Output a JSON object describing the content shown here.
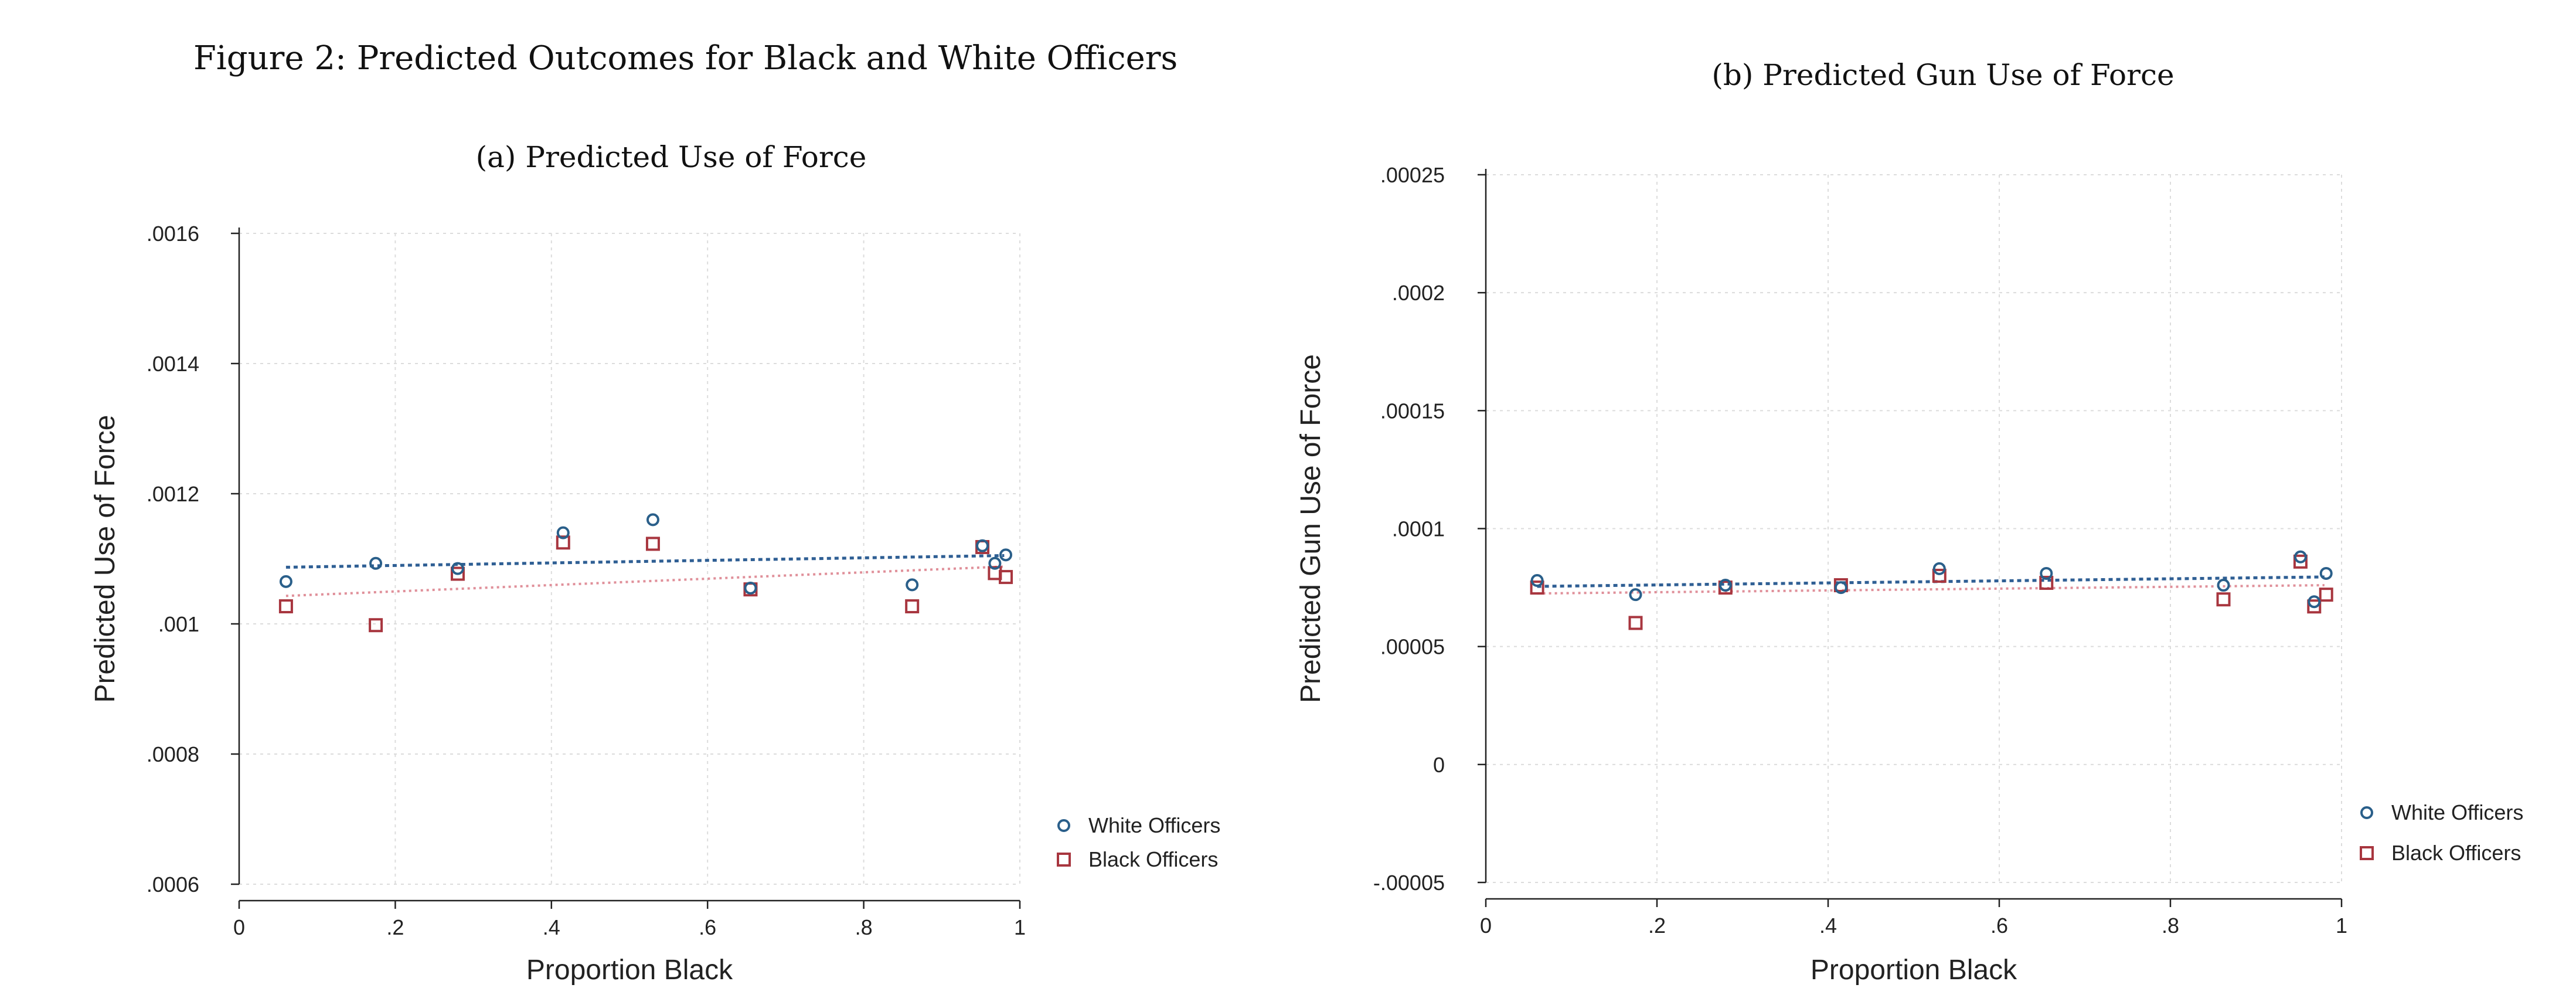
{
  "figure_title": "Figure 2: Predicted Outcomes for Black and White Officers",
  "colors": {
    "white_officers": "#2a5f8a",
    "black_officers": "#a8363f",
    "white_fit": "#2f5f94",
    "black_fit": "#e0909a",
    "grid": "#dcdcdc",
    "axis": "#222222"
  },
  "chart_data": [
    {
      "type": "scatter",
      "title": "(a) Predicted Use of Force",
      "xlabel": "Proportion Black",
      "ylabel": "Predicted Use of Force",
      "xlim": [
        0,
        1
      ],
      "ylim": [
        0.0006,
        0.0016
      ],
      "xticks": [
        0,
        0.2,
        0.4,
        0.6,
        0.8,
        1
      ],
      "xtick_labels": [
        "0",
        ".2",
        ".4",
        ".6",
        ".8",
        "1"
      ],
      "yticks": [
        0.0006,
        0.0008,
        0.001,
        0.0012,
        0.0014,
        0.0016
      ],
      "ytick_labels": [
        ".0006",
        ".0008",
        ".001",
        ".0012",
        ".0014",
        ".0016"
      ],
      "grid": true,
      "legend_position": "bottom-right",
      "series": [
        {
          "name": "White Officers",
          "marker": "circle",
          "x": [
            0.06,
            0.175,
            0.28,
            0.415,
            0.53,
            0.655,
            0.862,
            0.952,
            0.968,
            0.982
          ],
          "y": [
            0.001065,
            0.001093,
            0.001085,
            0.00114,
            0.00116,
            0.001055,
            0.00106,
            0.00112,
            0.001093,
            0.001106
          ],
          "fit": [
            [
              0.06,
              0.001087
            ],
            [
              0.98,
              0.001105
            ]
          ]
        },
        {
          "name": "Black Officers",
          "marker": "square",
          "x": [
            0.06,
            0.175,
            0.28,
            0.415,
            0.53,
            0.655,
            0.862,
            0.952,
            0.968,
            0.982
          ],
          "y": [
            0.001027,
            0.000998,
            0.001077,
            0.001125,
            0.001123,
            0.001053,
            0.001027,
            0.001118,
            0.001078,
            0.001072
          ],
          "fit": [
            [
              0.06,
              0.001043
            ],
            [
              0.98,
              0.001088
            ]
          ]
        }
      ]
    },
    {
      "type": "scatter",
      "title": "(b) Predicted Gun Use of Force",
      "xlabel": "Proportion Black",
      "ylabel": "Predicted Gun Use of Force",
      "xlim": [
        0,
        1
      ],
      "ylim": [
        -5e-05,
        0.00025
      ],
      "xticks": [
        0,
        0.2,
        0.4,
        0.6,
        0.8,
        1
      ],
      "xtick_labels": [
        "0",
        ".2",
        ".4",
        ".6",
        ".8",
        "1"
      ],
      "yticks": [
        -5e-05,
        0,
        5e-05,
        0.0001,
        0.00015,
        0.0002,
        0.00025
      ],
      "ytick_labels": [
        "-.00005",
        "0",
        ".00005",
        ".0001",
        ".00015",
        ".0002",
        ".00025"
      ],
      "grid": true,
      "legend_position": "bottom-right",
      "series": [
        {
          "name": "White Officers",
          "marker": "circle",
          "x": [
            0.06,
            0.175,
            0.28,
            0.415,
            0.53,
            0.655,
            0.862,
            0.952,
            0.968,
            0.982
          ],
          "y": [
            7.8e-05,
            7.2e-05,
            7.6e-05,
            7.5e-05,
            8.3e-05,
            8.1e-05,
            7.6e-05,
            8.8e-05,
            6.9e-05,
            8.1e-05
          ],
          "fit": [
            [
              0.06,
              7.55e-05
            ],
            [
              0.98,
              7.95e-05
            ]
          ]
        },
        {
          "name": "Black Officers",
          "marker": "square",
          "x": [
            0.06,
            0.175,
            0.28,
            0.415,
            0.53,
            0.655,
            0.862,
            0.952,
            0.968,
            0.982
          ],
          "y": [
            7.5e-05,
            6e-05,
            7.5e-05,
            7.6e-05,
            8e-05,
            7.7e-05,
            7e-05,
            8.6e-05,
            6.7e-05,
            7.2e-05
          ],
          "fit": [
            [
              0.06,
              7.25e-05
            ],
            [
              0.98,
              7.6e-05
            ]
          ]
        }
      ]
    }
  ]
}
